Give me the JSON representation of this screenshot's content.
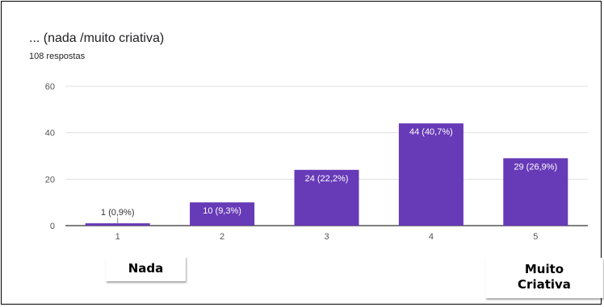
{
  "chart_data": {
    "type": "bar",
    "title": "... (nada /muito criativa)",
    "subtitle": "108 respostas",
    "categories": [
      "1",
      "2",
      "3",
      "4",
      "5"
    ],
    "values": [
      1,
      10,
      24,
      44,
      29
    ],
    "data_labels": [
      "1 (0,9%)",
      "10 (9,3%)",
      "24 (22,2%)",
      "44 (40,7%)",
      "29 (26,9%)"
    ],
    "y_ticks": [
      0,
      20,
      40,
      60
    ],
    "ylim": [
      0,
      60
    ],
    "grid": true,
    "bar_color": "#673ab7",
    "xlabel": "",
    "ylabel": ""
  },
  "annotations": {
    "low_label": "Nada",
    "high_label_line1": "Muito",
    "high_label_line2": "Criativa"
  }
}
